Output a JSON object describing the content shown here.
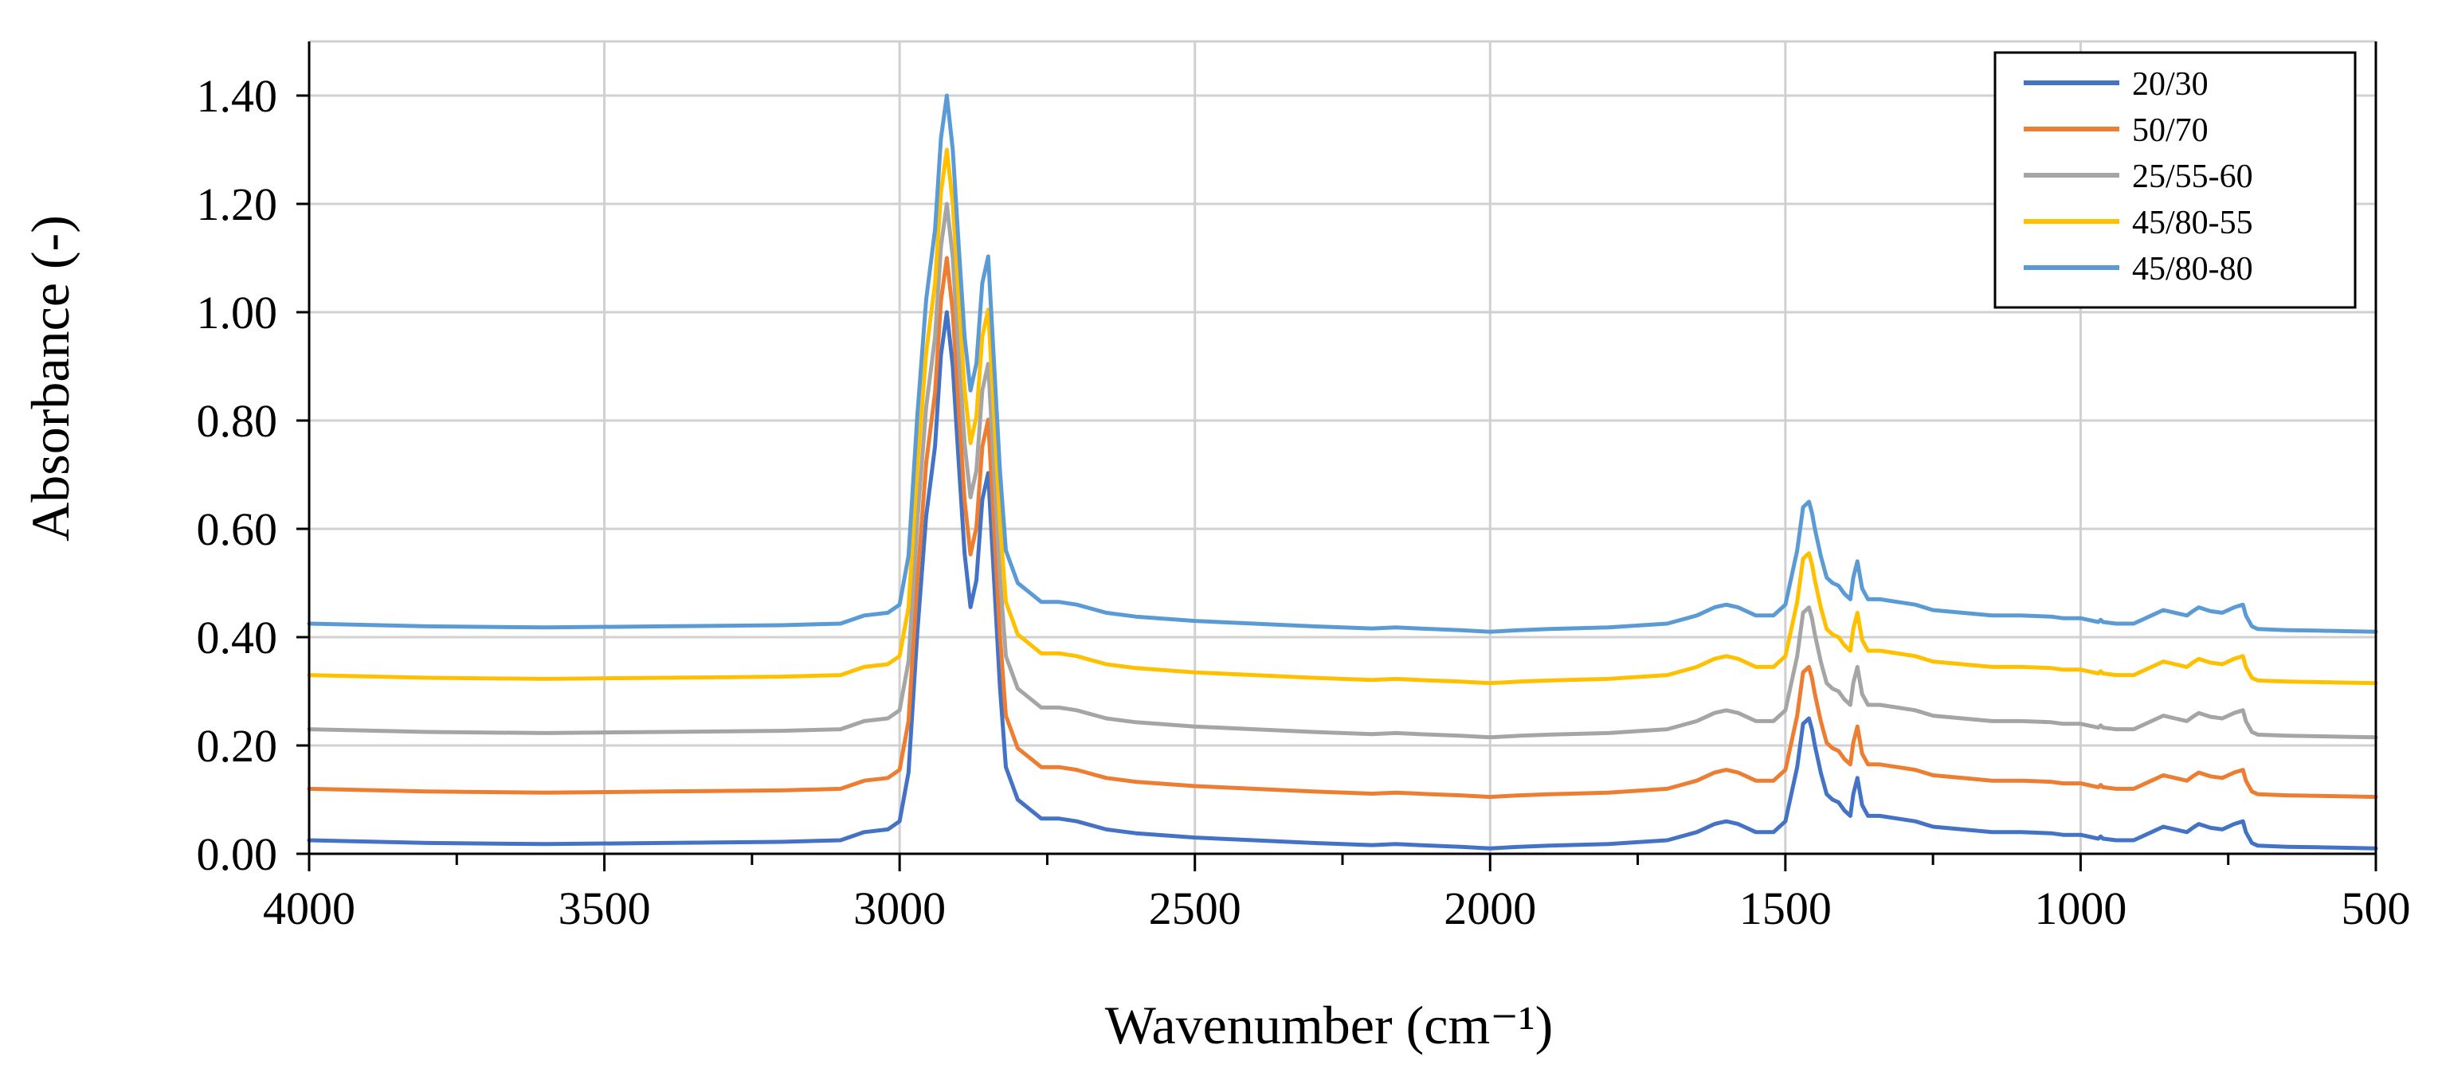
{
  "chart_data": {
    "type": "line",
    "title": "",
    "xlabel": "Wavenumber (cm⁻¹)",
    "ylabel": "Absorbance (-)",
    "xlim": [
      4000,
      500
    ],
    "ylim": [
      0,
      1.5
    ],
    "x_ticks": [
      4000,
      3500,
      3000,
      2500,
      2000,
      1500,
      1000,
      500
    ],
    "x_tick_labels": [
      "4000",
      "3500",
      "3000",
      "2500",
      "2000",
      "1500",
      "1000",
      "500"
    ],
    "y_ticks": [
      0,
      0.2,
      0.4,
      0.6,
      0.8,
      1.0,
      1.2,
      1.4
    ],
    "y_tick_labels": [
      "0.00",
      "0.20",
      "0.40",
      "0.60",
      "0.80",
      "1.00",
      "1.20",
      "1.40"
    ],
    "grid": true,
    "legend_position": "top-right",
    "peak_shape": {
      "x": [
        4000,
        3800,
        3600,
        3400,
        3200,
        3100,
        3060,
        3020,
        3000,
        2985,
        2970,
        2955,
        2940,
        2930,
        2920,
        2910,
        2900,
        2890,
        2880,
        2870,
        2860,
        2850,
        2840,
        2830,
        2820,
        2800,
        2760,
        2730,
        2700,
        2650,
        2600,
        2500,
        2400,
        2300,
        2200,
        2160,
        2100,
        2050,
        2000,
        1950,
        1900,
        1800,
        1700,
        1650,
        1620,
        1600,
        1580,
        1550,
        1520,
        1500,
        1480,
        1470,
        1460,
        1455,
        1450,
        1440,
        1430,
        1420,
        1410,
        1400,
        1390,
        1385,
        1378,
        1370,
        1360,
        1340,
        1310,
        1280,
        1250,
        1200,
        1150,
        1100,
        1050,
        1030,
        1000,
        970,
        966,
        962,
        940,
        910,
        880,
        860,
        840,
        820,
        810,
        800,
        780,
        760,
        740,
        725,
        720,
        710,
        700,
        650,
        600,
        550,
        500
      ],
      "shape": [
        0.015,
        0.01,
        0.008,
        0.01,
        0.012,
        0.015,
        0.03,
        0.035,
        0.05,
        0.14,
        0.4,
        0.62,
        0.75,
        0.92,
        1.0,
        0.9,
        0.72,
        0.55,
        0.45,
        0.5,
        0.65,
        0.7,
        0.5,
        0.3,
        0.15,
        0.09,
        0.055,
        0.055,
        0.05,
        0.035,
        0.028,
        0.02,
        0.015,
        0.01,
        0.006,
        0.008,
        0.005,
        0.003,
        0.0,
        0.003,
        0.005,
        0.008,
        0.015,
        0.03,
        0.045,
        0.05,
        0.045,
        0.03,
        0.03,
        0.05,
        0.15,
        0.23,
        0.24,
        0.22,
        0.19,
        0.14,
        0.1,
        0.09,
        0.085,
        0.07,
        0.06,
        0.1,
        0.13,
        0.08,
        0.06,
        0.06,
        0.055,
        0.05,
        0.04,
        0.035,
        0.03,
        0.03,
        0.028,
        0.025,
        0.025,
        0.018,
        0.022,
        0.018,
        0.015,
        0.015,
        0.03,
        0.04,
        0.035,
        0.03,
        0.038,
        0.045,
        0.038,
        0.035,
        0.045,
        0.05,
        0.03,
        0.01,
        0.005,
        0.003,
        0.002,
        0.001,
        0.0
      ]
    },
    "series": [
      {
        "name": "20/30",
        "color": "#4472c4",
        "offset": 0.01,
        "peak_scale": 1.0,
        "peak_max": 1.0
      },
      {
        "name": "50/70",
        "color": "#ed7d31",
        "offset": 0.105,
        "peak_scale": 1.0,
        "peak_max": 1.1
      },
      {
        "name": "25/55-60",
        "color": "#a5a5a5",
        "offset": 0.215,
        "peak_scale": 1.0,
        "peak_max": 1.2
      },
      {
        "name": "45/80-55",
        "color": "#ffc000",
        "offset": 0.315,
        "peak_scale": 1.0,
        "peak_max": 1.3
      },
      {
        "name": "45/80-80",
        "color": "#5b9bd5",
        "offset": 0.41,
        "peak_scale": 1.0,
        "peak_max": 1.4
      }
    ]
  }
}
